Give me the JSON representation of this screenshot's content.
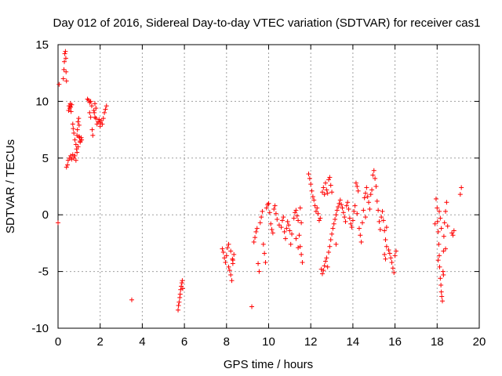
{
  "chart_data": {
    "type": "scatter",
    "title": "Day 012 of 2016, Sidereal Day-to-day VTEC variation (SDTVAR) for receiver cas1",
    "xlabel": "GPS time / hours",
    "ylabel": "SDTVAR / TECUs",
    "xlim": [
      0,
      20
    ],
    "ylim": [
      -10,
      15
    ],
    "xticks": [
      0,
      2,
      4,
      6,
      8,
      10,
      12,
      14,
      16,
      18,
      20
    ],
    "yticks": [
      -10,
      -5,
      0,
      5,
      10,
      15
    ],
    "grid": true,
    "marker": "plus",
    "color": "#ff0000",
    "series": [
      {
        "name": "cas1",
        "points": [
          [
            0.0,
            -0.7
          ],
          [
            0.05,
            11.5
          ],
          [
            0.25,
            12.0
          ],
          [
            0.28,
            12.8
          ],
          [
            0.3,
            13.5
          ],
          [
            0.32,
            14.2
          ],
          [
            0.35,
            14.4
          ],
          [
            0.37,
            13.8
          ],
          [
            0.38,
            12.6
          ],
          [
            0.4,
            11.8
          ],
          [
            0.4,
            4.2
          ],
          [
            0.45,
            4.4
          ],
          [
            0.48,
            4.8
          ],
          [
            0.5,
            9.2
          ],
          [
            0.52,
            9.6
          ],
          [
            0.55,
            9.4
          ],
          [
            0.58,
            9.8
          ],
          [
            0.6,
            9.5
          ],
          [
            0.62,
            9.1
          ],
          [
            0.65,
            9.7
          ],
          [
            0.55,
            5.0
          ],
          [
            0.6,
            5.2
          ],
          [
            0.65,
            4.9
          ],
          [
            0.7,
            5.3
          ],
          [
            0.75,
            5.0
          ],
          [
            0.8,
            5.2
          ],
          [
            0.85,
            4.8
          ],
          [
            0.7,
            8.0
          ],
          [
            0.72,
            7.6
          ],
          [
            0.75,
            7.2
          ],
          [
            0.8,
            6.6
          ],
          [
            0.85,
            6.2
          ],
          [
            0.88,
            5.8
          ],
          [
            0.9,
            7.0
          ],
          [
            0.92,
            7.5
          ],
          [
            0.95,
            8.2
          ],
          [
            0.98,
            8.5
          ],
          [
            1.0,
            7.9
          ],
          [
            1.02,
            6.8
          ],
          [
            1.05,
            6.5
          ],
          [
            0.9,
            5.5
          ],
          [
            0.95,
            6.0
          ],
          [
            1.0,
            6.9
          ],
          [
            1.05,
            6.4
          ],
          [
            1.1,
            6.8
          ],
          [
            1.12,
            6.6
          ],
          [
            1.4,
            10.2
          ],
          [
            1.45,
            10.1
          ],
          [
            1.5,
            9.9
          ],
          [
            1.55,
            10.0
          ],
          [
            1.6,
            9.6
          ],
          [
            1.62,
            7.5
          ],
          [
            1.65,
            7.0
          ],
          [
            1.7,
            9.2
          ],
          [
            1.72,
            9.0
          ],
          [
            1.75,
            8.6
          ],
          [
            1.8,
            8.5
          ],
          [
            1.85,
            8.0
          ],
          [
            1.9,
            8.2
          ],
          [
            1.95,
            8.4
          ],
          [
            2.0,
            8.1
          ],
          [
            2.05,
            8.3
          ],
          [
            2.1,
            8.0
          ],
          [
            2.15,
            8.5
          ],
          [
            2.2,
            9.0
          ],
          [
            2.25,
            9.3
          ],
          [
            2.3,
            9.6
          ],
          [
            1.5,
            9.0
          ],
          [
            1.55,
            8.6
          ],
          [
            1.75,
            9.8
          ],
          [
            1.8,
            9.4
          ],
          [
            2.0,
            7.8
          ],
          [
            3.5,
            -7.5
          ],
          [
            5.7,
            -8.4
          ],
          [
            5.72,
            -8.0
          ],
          [
            5.75,
            -7.7
          ],
          [
            5.78,
            -7.3
          ],
          [
            5.8,
            -7.0
          ],
          [
            5.82,
            -6.6
          ],
          [
            5.85,
            -6.3
          ],
          [
            5.88,
            -6.0
          ],
          [
            5.9,
            -5.8
          ],
          [
            5.92,
            -6.5
          ],
          [
            7.8,
            -3.0
          ],
          [
            7.85,
            -3.3
          ],
          [
            7.9,
            -3.8
          ],
          [
            7.95,
            -4.2
          ],
          [
            8.0,
            -3.6
          ],
          [
            8.05,
            -2.9
          ],
          [
            8.1,
            -4.6
          ],
          [
            8.15,
            -4.9
          ],
          [
            8.2,
            -5.3
          ],
          [
            8.25,
            -5.8
          ],
          [
            8.3,
            -4.0
          ],
          [
            8.35,
            -3.5
          ],
          [
            8.1,
            -2.6
          ],
          [
            8.2,
            -3.2
          ],
          [
            8.3,
            -4.3
          ],
          [
            8.28,
            -3.9
          ],
          [
            9.2,
            -8.1
          ],
          [
            9.3,
            -2.4
          ],
          [
            9.35,
            -2.0
          ],
          [
            9.4,
            -1.5
          ],
          [
            9.45,
            -1.2
          ],
          [
            9.5,
            -4.3
          ],
          [
            9.55,
            -5.0
          ],
          [
            9.6,
            -0.7
          ],
          [
            9.65,
            -0.2
          ],
          [
            9.7,
            0.3
          ],
          [
            9.75,
            -2.6
          ],
          [
            9.8,
            -3.4
          ],
          [
            9.85,
            -4.2
          ],
          [
            9.9,
            0.6
          ],
          [
            9.95,
            0.9
          ],
          [
            10.0,
            1.0
          ],
          [
            10.05,
            0.2
          ],
          [
            10.1,
            -0.8
          ],
          [
            10.15,
            -1.3
          ],
          [
            10.2,
            -1.6
          ],
          [
            10.25,
            0.5
          ],
          [
            10.3,
            0.8
          ],
          [
            10.35,
            0.1
          ],
          [
            10.4,
            -0.4
          ],
          [
            10.5,
            -0.9
          ],
          [
            10.6,
            -1.1
          ],
          [
            10.65,
            -0.5
          ],
          [
            10.7,
            -0.2
          ],
          [
            10.75,
            -1.5
          ],
          [
            10.8,
            -2.1
          ],
          [
            10.85,
            -1.2
          ],
          [
            10.9,
            -0.6
          ],
          [
            10.95,
            -0.9
          ],
          [
            11.0,
            -1.4
          ],
          [
            11.05,
            -2.6
          ],
          [
            11.1,
            -1.7
          ],
          [
            11.2,
            -0.3
          ],
          [
            11.25,
            0.2
          ],
          [
            11.3,
            0.4
          ],
          [
            11.35,
            -0.1
          ],
          [
            11.4,
            -0.5
          ],
          [
            11.45,
            -1.8
          ],
          [
            11.5,
            -2.8
          ],
          [
            11.55,
            -3.5
          ],
          [
            11.6,
            -4.2
          ],
          [
            11.3,
            -2.1
          ],
          [
            11.5,
            0.6
          ],
          [
            11.4,
            -2.9
          ],
          [
            11.55,
            -0.7
          ],
          [
            11.9,
            3.6
          ],
          [
            11.95,
            3.2
          ],
          [
            12.0,
            2.7
          ],
          [
            12.05,
            2.1
          ],
          [
            12.1,
            1.6
          ],
          [
            12.15,
            1.3
          ],
          [
            12.2,
            0.8
          ],
          [
            12.25,
            0.3
          ],
          [
            12.3,
            0.6
          ],
          [
            12.35,
            0.1
          ],
          [
            12.4,
            -0.5
          ],
          [
            12.45,
            -0.3
          ],
          [
            12.5,
            -4.8
          ],
          [
            12.55,
            -5.2
          ],
          [
            12.6,
            -4.9
          ],
          [
            12.65,
            -4.5
          ],
          [
            12.7,
            -4.1
          ],
          [
            12.75,
            -3.8
          ],
          [
            12.55,
            2.0
          ],
          [
            12.6,
            2.4
          ],
          [
            12.65,
            1.8
          ],
          [
            12.7,
            2.8
          ],
          [
            12.75,
            2.2
          ],
          [
            12.8,
            1.9
          ],
          [
            12.85,
            3.1
          ],
          [
            12.9,
            3.3
          ],
          [
            12.95,
            2.6
          ],
          [
            13.0,
            2.0
          ],
          [
            12.85,
            -3.3
          ],
          [
            12.9,
            -2.8
          ],
          [
            12.95,
            -2.2
          ],
          [
            13.0,
            -1.7
          ],
          [
            13.05,
            -1.2
          ],
          [
            13.1,
            -0.8
          ],
          [
            13.15,
            -0.4
          ],
          [
            13.2,
            0.0
          ],
          [
            13.25,
            0.4
          ],
          [
            13.3,
            0.7
          ],
          [
            13.35,
            1.0
          ],
          [
            13.4,
            1.3
          ],
          [
            13.45,
            0.9
          ],
          [
            13.5,
            0.6
          ],
          [
            13.55,
            0.2
          ],
          [
            13.6,
            -0.2
          ],
          [
            13.65,
            -0.6
          ],
          [
            13.7,
            0.8
          ],
          [
            13.75,
            1.1
          ],
          [
            13.8,
            0.5
          ],
          [
            13.85,
            -0.3
          ],
          [
            13.9,
            -0.8
          ],
          [
            13.95,
            -1.1
          ],
          [
            14.0,
            -0.5
          ],
          [
            14.05,
            0.3
          ],
          [
            14.1,
            0.8
          ],
          [
            14.15,
            2.8
          ],
          [
            14.2,
            2.5
          ],
          [
            14.25,
            2.1
          ],
          [
            14.3,
            -1.2
          ],
          [
            14.35,
            -1.8
          ],
          [
            14.4,
            -2.4
          ],
          [
            14.45,
            -0.7
          ],
          [
            14.5,
            0.4
          ],
          [
            14.55,
            1.5
          ],
          [
            14.6,
            1.9
          ],
          [
            14.65,
            2.4
          ],
          [
            14.7,
            1.6
          ],
          [
            14.75,
            1.1
          ],
          [
            14.8,
            0.5
          ],
          [
            14.85,
            1.8
          ],
          [
            14.9,
            2.2
          ],
          [
            14.95,
            3.5
          ],
          [
            15.0,
            3.9
          ],
          [
            15.05,
            3.2
          ],
          [
            15.1,
            2.5
          ],
          [
            15.15,
            1.2
          ],
          [
            15.2,
            0.4
          ],
          [
            15.25,
            -0.6
          ],
          [
            15.3,
            -1.3
          ],
          [
            15.35,
            -0.2
          ],
          [
            15.4,
            0.3
          ],
          [
            15.45,
            -0.5
          ],
          [
            15.5,
            -1.4
          ],
          [
            15.55,
            -2.2
          ],
          [
            15.6,
            -1.1
          ],
          [
            15.5,
            -3.5
          ],
          [
            15.55,
            -3.9
          ],
          [
            15.6,
            -2.8
          ],
          [
            15.7,
            -3.1
          ],
          [
            15.75,
            -3.4
          ],
          [
            15.8,
            -3.8
          ],
          [
            15.85,
            -4.2
          ],
          [
            15.9,
            -4.7
          ],
          [
            15.95,
            -5.1
          ],
          [
            16.0,
            -3.6
          ],
          [
            16.05,
            -3.2
          ],
          [
            14.6,
            -0.2
          ],
          [
            14.2,
            0.1
          ],
          [
            13.2,
            -2.6
          ],
          [
            12.8,
            -4.6
          ],
          [
            17.9,
            -0.8
          ],
          [
            17.95,
            1.4
          ],
          [
            18.0,
            0.6
          ],
          [
            18.02,
            -0.6
          ],
          [
            18.05,
            -1.5
          ],
          [
            18.08,
            -2.6
          ],
          [
            18.1,
            -3.6
          ],
          [
            18.12,
            -4.6
          ],
          [
            18.15,
            -5.6
          ],
          [
            18.18,
            -6.2
          ],
          [
            18.2,
            -6.8
          ],
          [
            18.22,
            -7.2
          ],
          [
            18.25,
            -7.6
          ],
          [
            18.28,
            -5.0
          ],
          [
            18.3,
            -3.2
          ],
          [
            18.32,
            -1.9
          ],
          [
            18.35,
            -0.7
          ],
          [
            18.4,
            0.3
          ],
          [
            18.45,
            1.1
          ],
          [
            18.5,
            -1.0
          ],
          [
            18.1,
            0.3
          ],
          [
            18.2,
            -1.2
          ],
          [
            18.3,
            -5.3
          ],
          [
            18.4,
            -3.0
          ],
          [
            18.05,
            -4.0
          ],
          [
            18.15,
            -0.3
          ],
          [
            18.7,
            -1.6
          ],
          [
            18.75,
            -1.8
          ],
          [
            18.8,
            -1.4
          ],
          [
            19.1,
            1.8
          ],
          [
            19.15,
            2.4
          ]
        ]
      }
    ]
  }
}
